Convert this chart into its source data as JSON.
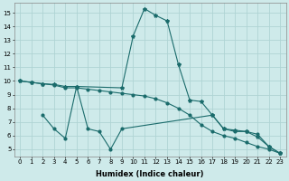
{
  "xlabel": "Humidex (Indice chaleur)",
  "background_color": "#ceeaea",
  "grid_color": "#afd4d4",
  "line_color": "#1a6b6b",
  "xlim": [
    -0.5,
    23.5
  ],
  "ylim": [
    4.5,
    15.7
  ],
  "yticks": [
    5,
    6,
    7,
    8,
    9,
    10,
    11,
    12,
    13,
    14,
    15
  ],
  "xticks": [
    0,
    1,
    2,
    3,
    4,
    5,
    6,
    7,
    8,
    9,
    10,
    11,
    12,
    13,
    14,
    15,
    16,
    17,
    18,
    19,
    20,
    21,
    22,
    23
  ],
  "line1_x": [
    0,
    1,
    2,
    3,
    4,
    5,
    9,
    10,
    11,
    12,
    13,
    14,
    15,
    16,
    17,
    18,
    19,
    20,
    21,
    22,
    23
  ],
  "line1_y": [
    10.0,
    9.9,
    9.8,
    9.75,
    9.6,
    9.6,
    9.5,
    13.3,
    15.3,
    14.8,
    14.4,
    11.2,
    8.6,
    8.5,
    7.5,
    6.5,
    6.4,
    6.3,
    5.9,
    5.2,
    4.7
  ],
  "line2_x": [
    2,
    3,
    4,
    5,
    6,
    7,
    8,
    9,
    17,
    18,
    19,
    20,
    21,
    22,
    23
  ],
  "line2_y": [
    7.5,
    6.5,
    5.8,
    9.6,
    6.5,
    6.3,
    5.0,
    6.5,
    7.5,
    6.5,
    6.3,
    6.3,
    6.1,
    5.2,
    4.7
  ],
  "line3_x": [
    0,
    1,
    2,
    3,
    4,
    5,
    6,
    7,
    8,
    9,
    10,
    11,
    12,
    13,
    14,
    15,
    16,
    17,
    18,
    19,
    20,
    21,
    22,
    23
  ],
  "line3_y": [
    10.0,
    9.9,
    9.8,
    9.7,
    9.5,
    9.5,
    9.4,
    9.3,
    9.2,
    9.1,
    9.0,
    8.9,
    8.7,
    8.4,
    8.0,
    7.5,
    6.8,
    6.3,
    6.0,
    5.8,
    5.5,
    5.2,
    5.0,
    4.7
  ],
  "tick_fontsize": 5.0,
  "xlabel_fontsize": 6.0
}
